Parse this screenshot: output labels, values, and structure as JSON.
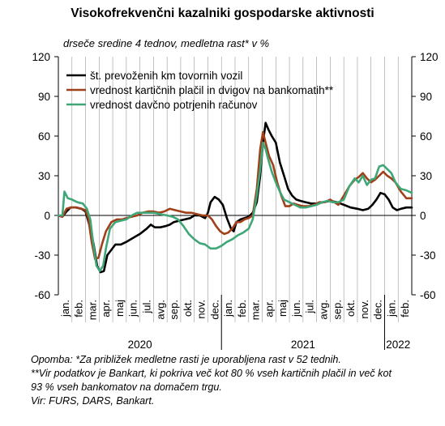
{
  "title": "Visokofrekvenčni kazalniki gospodarske aktivnosti",
  "subtitle": "drseče sredine 4 tednov, medletna rast* v %",
  "notes": [
    "Opomba: *Za približek medletne rasti je uporabljena rast v 52 tednih.",
    "**Vir podatkov je Bankart, ki pokriva več kot 80 % vseh kartičnih plačil in več kot",
    "93 % vseh bankomatov na domačem trgu.",
    "Vir: FURS, DARS, Bankart."
  ],
  "chart_data": {
    "type": "line",
    "ylim": [
      -60,
      120
    ],
    "yticks": [
      "-60",
      "-30",
      "0",
      "30",
      "60",
      "90",
      "120"
    ],
    "month_labels": [
      "jan.",
      "feb.",
      "mar.",
      "apr.",
      "maj",
      "jun.",
      "jul.",
      "avg.",
      "sep.",
      "okt.",
      "nov.",
      "dec.",
      "jan.",
      "feb.",
      "mar.",
      "apr.",
      "maj",
      "jun.",
      "jul.",
      "avg.",
      "sep.",
      "okt.",
      "nov.",
      "dec.",
      "jan.",
      "feb."
    ],
    "years": [
      "2020",
      "2021",
      "2022"
    ],
    "grid": "vertical lines after every month",
    "legend_position": "top-left",
    "series": [
      {
        "name": "št. prevoženih km tovornih vozil",
        "color": "#000000",
        "points": [
          [
            0.0,
            0
          ],
          [
            0.3,
            -1
          ],
          [
            0.6,
            3
          ],
          [
            0.9,
            6
          ],
          [
            1.3,
            6
          ],
          [
            1.7,
            5
          ],
          [
            2.0,
            3
          ],
          [
            2.3,
            -8
          ],
          [
            2.6,
            -22
          ],
          [
            2.85,
            -38
          ],
          [
            3.1,
            -43
          ],
          [
            3.35,
            -42
          ],
          [
            3.6,
            -30
          ],
          [
            3.9,
            -26
          ],
          [
            4.2,
            -22
          ],
          [
            4.6,
            -22
          ],
          [
            5.0,
            -20
          ],
          [
            5.5,
            -17
          ],
          [
            6.0,
            -14
          ],
          [
            6.5,
            -10
          ],
          [
            6.8,
            -7
          ],
          [
            7.1,
            -9
          ],
          [
            7.5,
            -9
          ],
          [
            7.9,
            -8
          ],
          [
            8.2,
            -7
          ],
          [
            8.5,
            -5
          ],
          [
            8.9,
            -4
          ],
          [
            9.3,
            -3
          ],
          [
            9.7,
            -2
          ],
          [
            10.0,
            0
          ],
          [
            10.4,
            0
          ],
          [
            10.8,
            -2
          ],
          [
            11.0,
            2
          ],
          [
            11.2,
            10
          ],
          [
            11.5,
            14
          ],
          [
            11.8,
            12
          ],
          [
            12.1,
            8
          ],
          [
            12.4,
            -2
          ],
          [
            12.7,
            -10
          ],
          [
            12.9,
            -12
          ],
          [
            13.1,
            -5
          ],
          [
            13.4,
            -3
          ],
          [
            13.7,
            -2
          ],
          [
            14.0,
            -1
          ],
          [
            14.3,
            2
          ],
          [
            14.6,
            10
          ],
          [
            14.85,
            30
          ],
          [
            15.05,
            55
          ],
          [
            15.25,
            70
          ],
          [
            15.45,
            65
          ],
          [
            15.7,
            60
          ],
          [
            16.0,
            55
          ],
          [
            16.3,
            40
          ],
          [
            16.6,
            30
          ],
          [
            16.9,
            20
          ],
          [
            17.2,
            15
          ],
          [
            17.5,
            12
          ],
          [
            17.8,
            11
          ],
          [
            18.2,
            10
          ],
          [
            18.6,
            9
          ],
          [
            19.0,
            9
          ],
          [
            19.5,
            10
          ],
          [
            20.0,
            11
          ],
          [
            20.5,
            10
          ],
          [
            21.0,
            8
          ],
          [
            21.5,
            6
          ],
          [
            22.0,
            5
          ],
          [
            22.4,
            4
          ],
          [
            22.8,
            5
          ],
          [
            23.1,
            8
          ],
          [
            23.4,
            12
          ],
          [
            23.7,
            17
          ],
          [
            24.0,
            16
          ],
          [
            24.3,
            12
          ],
          [
            24.6,
            6
          ],
          [
            24.9,
            4
          ],
          [
            25.2,
            5
          ],
          [
            25.6,
            6
          ],
          [
            26.0,
            6
          ]
        ]
      },
      {
        "name": "vrednost kartičnih plačil in dvigov na bankomatih**",
        "color": "#a0401a",
        "points": [
          [
            0.0,
            0
          ],
          [
            0.3,
            -1
          ],
          [
            0.6,
            5
          ],
          [
            0.9,
            6
          ],
          [
            1.3,
            6
          ],
          [
            1.7,
            5
          ],
          [
            2.0,
            4
          ],
          [
            2.2,
            -2
          ],
          [
            2.45,
            -20
          ],
          [
            2.7,
            -33
          ],
          [
            2.95,
            -32
          ],
          [
            3.2,
            -22
          ],
          [
            3.5,
            -12
          ],
          [
            3.9,
            -5
          ],
          [
            4.3,
            -3
          ],
          [
            4.7,
            -3
          ],
          [
            5.0,
            -2
          ],
          [
            5.4,
            -1
          ],
          [
            5.8,
            0
          ],
          [
            6.2,
            2
          ],
          [
            6.6,
            3
          ],
          [
            7.0,
            3
          ],
          [
            7.4,
            2
          ],
          [
            7.8,
            3
          ],
          [
            8.2,
            5
          ],
          [
            8.6,
            4
          ],
          [
            9.0,
            3
          ],
          [
            9.4,
            2
          ],
          [
            9.8,
            2
          ],
          [
            10.2,
            1
          ],
          [
            10.6,
            0
          ],
          [
            11.0,
            0
          ],
          [
            11.3,
            -3
          ],
          [
            11.6,
            -8
          ],
          [
            11.9,
            -12
          ],
          [
            12.2,
            -14
          ],
          [
            12.5,
            -13
          ],
          [
            12.8,
            -10
          ],
          [
            13.1,
            -5
          ],
          [
            13.4,
            -5
          ],
          [
            13.7,
            -3
          ],
          [
            14.0,
            -2
          ],
          [
            14.3,
            0
          ],
          [
            14.6,
            20
          ],
          [
            14.85,
            50
          ],
          [
            15.05,
            63
          ],
          [
            15.25,
            55
          ],
          [
            15.5,
            45
          ],
          [
            15.8,
            38
          ],
          [
            16.1,
            25
          ],
          [
            16.4,
            15
          ],
          [
            16.7,
            7
          ],
          [
            17.0,
            7
          ],
          [
            17.3,
            9
          ],
          [
            17.6,
            8
          ],
          [
            18.0,
            7
          ],
          [
            18.4,
            7
          ],
          [
            18.8,
            8
          ],
          [
            19.2,
            10
          ],
          [
            19.6,
            10
          ],
          [
            20.0,
            12
          ],
          [
            20.3,
            10
          ],
          [
            20.6,
            8
          ],
          [
            21.0,
            15
          ],
          [
            21.4,
            22
          ],
          [
            21.8,
            27
          ],
          [
            22.1,
            29
          ],
          [
            22.4,
            32
          ],
          [
            22.7,
            28
          ],
          [
            23.0,
            25
          ],
          [
            23.3,
            27
          ],
          [
            23.6,
            30
          ],
          [
            23.9,
            33
          ],
          [
            24.2,
            30
          ],
          [
            24.5,
            28
          ],
          [
            24.8,
            25
          ],
          [
            25.2,
            18
          ],
          [
            25.6,
            13
          ],
          [
            26.0,
            13
          ]
        ]
      },
      {
        "name": "vrednost davčno potrjenih računov",
        "color": "#3fa777",
        "points": [
          [
            0.0,
            0
          ],
          [
            0.3,
            0
          ],
          [
            0.45,
            18
          ],
          [
            0.7,
            13
          ],
          [
            1.0,
            12
          ],
          [
            1.4,
            10
          ],
          [
            1.8,
            9
          ],
          [
            2.1,
            5
          ],
          [
            2.35,
            -3
          ],
          [
            2.55,
            -20
          ],
          [
            2.8,
            -38
          ],
          [
            3.05,
            -42
          ],
          [
            3.3,
            -38
          ],
          [
            3.5,
            -25
          ],
          [
            3.8,
            -10
          ],
          [
            4.2,
            -5
          ],
          [
            4.6,
            -4
          ],
          [
            5.0,
            -3
          ],
          [
            5.4,
            0
          ],
          [
            5.8,
            2
          ],
          [
            6.2,
            2
          ],
          [
            6.6,
            2
          ],
          [
            7.0,
            2
          ],
          [
            7.5,
            1
          ],
          [
            8.0,
            0
          ],
          [
            8.4,
            -1
          ],
          [
            8.8,
            -3
          ],
          [
            9.2,
            -8
          ],
          [
            9.6,
            -14
          ],
          [
            10.0,
            -18
          ],
          [
            10.4,
            -21
          ],
          [
            10.8,
            -22
          ],
          [
            11.2,
            -25
          ],
          [
            11.6,
            -25
          ],
          [
            12.0,
            -23
          ],
          [
            12.4,
            -20
          ],
          [
            12.8,
            -18
          ],
          [
            13.2,
            -15
          ],
          [
            13.6,
            -13
          ],
          [
            14.0,
            -10
          ],
          [
            14.3,
            -3
          ],
          [
            14.6,
            15
          ],
          [
            14.85,
            35
          ],
          [
            15.05,
            55
          ],
          [
            15.25,
            50
          ],
          [
            15.45,
            42
          ],
          [
            15.7,
            33
          ],
          [
            16.0,
            25
          ],
          [
            16.3,
            18
          ],
          [
            16.6,
            12
          ],
          [
            17.0,
            10
          ],
          [
            17.4,
            8
          ],
          [
            17.8,
            6
          ],
          [
            18.2,
            6
          ],
          [
            18.6,
            7
          ],
          [
            19.0,
            8
          ],
          [
            19.4,
            10
          ],
          [
            19.8,
            11
          ],
          [
            20.2,
            10
          ],
          [
            20.6,
            10
          ],
          [
            21.0,
            12
          ],
          [
            21.4,
            22
          ],
          [
            21.8,
            28
          ],
          [
            22.1,
            25
          ],
          [
            22.4,
            30
          ],
          [
            22.7,
            23
          ],
          [
            23.0,
            27
          ],
          [
            23.3,
            28
          ],
          [
            23.6,
            37
          ],
          [
            23.9,
            38
          ],
          [
            24.2,
            35
          ],
          [
            24.5,
            32
          ],
          [
            24.8,
            25
          ],
          [
            25.2,
            20
          ],
          [
            25.6,
            19
          ],
          [
            26.0,
            17
          ]
        ]
      }
    ]
  }
}
